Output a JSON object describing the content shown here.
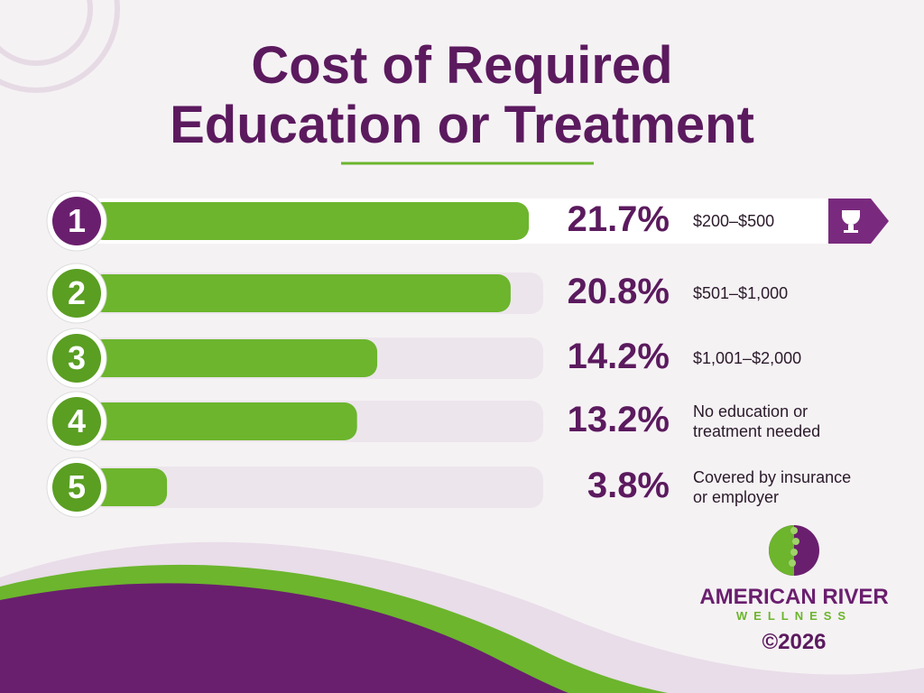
{
  "chart_data": {
    "type": "bar",
    "title": "Cost of Required Education or Treatment",
    "ranks": [
      1,
      2,
      3,
      4,
      5
    ],
    "categories": [
      "$200–$500",
      "$501–$1,000",
      "$1,001–$2,000",
      "No education or treatment needed",
      "Covered by insurance or employer"
    ],
    "values": [
      21.7,
      20.8,
      14.2,
      13.2,
      3.8
    ],
    "value_labels": [
      "21.7%",
      "20.8%",
      "14.2%",
      "13.2%",
      "3.8%"
    ],
    "color": "#6cb52d"
  },
  "branding": {
    "name": "AMERICAN RIVER",
    "tagline": "WELLNESS",
    "copyright": "©2026"
  }
}
